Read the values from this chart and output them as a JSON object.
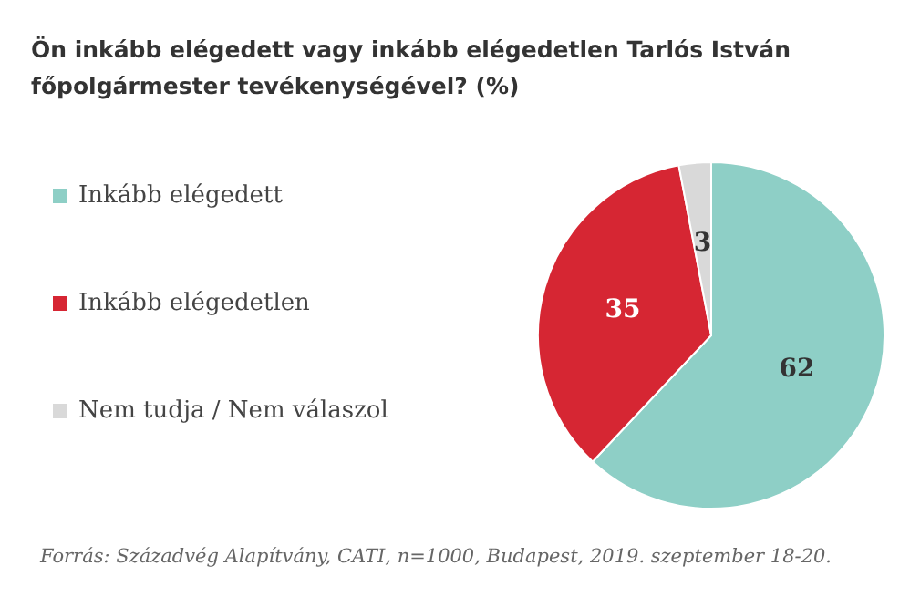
{
  "chart_data": {
    "type": "pie",
    "title": "Ön inkább elégedett vagy inkább elégedetlen Tarlós István főpolgármester tevékenységével? (%)",
    "categories": [
      "Inkább elégedett",
      "Inkább elégedetlen",
      "Nem tudja / Nem válaszol"
    ],
    "values": [
      62,
      35,
      3
    ],
    "colors": [
      "#8ecfc6",
      "#d62633",
      "#d9d9d9"
    ],
    "data_labels": true,
    "legend": "left",
    "annotations": [
      "Forrás: Századvég Alapítvány, CATI, n=1000, Budapest, 2019. szeptember 18-20."
    ]
  }
}
